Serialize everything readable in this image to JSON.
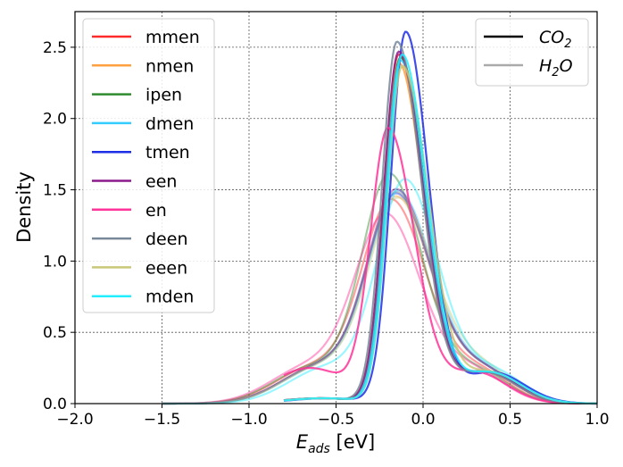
{
  "chart_data": {
    "type": "line",
    "title": "",
    "xlabel_main": "E",
    "xlabel_sub": "ads",
    "xlabel_unit": " [eV]",
    "ylabel": "Density",
    "xlim": [
      -2.0,
      1.0
    ],
    "ylim": [
      0.0,
      2.75
    ],
    "xticks": [
      -2.0,
      -1.5,
      -1.0,
      -0.5,
      0.0,
      0.5,
      1.0
    ],
    "xtick_labels": [
      "−2.0",
      "−1.5",
      "−1.0",
      "−0.5",
      "0.0",
      "0.5",
      "1.0"
    ],
    "yticks": [
      0.0,
      0.5,
      1.0,
      1.5,
      2.0,
      2.5
    ],
    "ytick_labels": [
      "0.0",
      "0.5",
      "1.0",
      "1.5",
      "2.0",
      "2.5"
    ],
    "grid": true,
    "legend_amines_position": "upper-left",
    "legend_adsorbates_position": "upper-right",
    "adsorbates": [
      {
        "name": "CO2",
        "label_main": "CO",
        "label_sub": "2",
        "color": "#000000"
      },
      {
        "name": "H2O",
        "label_main": "H",
        "label_sub": "2",
        "label_tail": "O",
        "color": "#aaaaaa"
      }
    ],
    "series": [
      {
        "name": "mmen",
        "color": "#ff2a2a",
        "co2": {
          "peak_x": -0.14,
          "peak_y": 2.44,
          "sl": 0.085,
          "sr": 0.14
        },
        "h2o": {
          "peak_x": -0.18,
          "peak_y": 1.4,
          "sl": 0.17,
          "sr": 0.2
        }
      },
      {
        "name": "nmen",
        "color": "#ffa040",
        "co2": {
          "peak_x": -0.14,
          "peak_y": 2.38,
          "sl": 0.085,
          "sr": 0.14
        },
        "h2o": {
          "peak_x": -0.15,
          "peak_y": 1.42,
          "sl": 0.17,
          "sr": 0.2
        }
      },
      {
        "name": "ipen",
        "color": "#2e8b2e",
        "co2": {
          "peak_x": -0.13,
          "peak_y": 2.42,
          "sl": 0.085,
          "sr": 0.14
        },
        "h2o": {
          "peak_x": -0.19,
          "peak_y": 1.58,
          "sl": 0.16,
          "sr": 0.19
        }
      },
      {
        "name": "dmen",
        "color": "#33ccff",
        "co2": {
          "peak_x": -0.13,
          "peak_y": 2.4,
          "sl": 0.085,
          "sr": 0.14
        },
        "h2o": {
          "peak_x": -0.14,
          "peak_y": 1.46,
          "sl": 0.17,
          "sr": 0.2
        }
      },
      {
        "name": "tmen",
        "color": "#1e2ee6",
        "co2": {
          "peak_x": -0.1,
          "peak_y": 2.6,
          "sl": 0.085,
          "sr": 0.13
        },
        "h2o": {
          "peak_x": -0.15,
          "peak_y": 1.44,
          "sl": 0.17,
          "sr": 0.2
        }
      },
      {
        "name": "een",
        "color": "#8b1a8b",
        "co2": {
          "peak_x": -0.14,
          "peak_y": 2.46,
          "sl": 0.085,
          "sr": 0.14
        },
        "h2o": {
          "peak_x": -0.15,
          "peak_y": 1.47,
          "sl": 0.17,
          "sr": 0.2
        }
      },
      {
        "name": "en",
        "color": "#ff3399",
        "co2": {
          "peak_x": -0.2,
          "peak_y": 1.9,
          "sl": 0.1,
          "sr": 0.15
        },
        "h2o": {
          "peak_x": -0.21,
          "peak_y": 1.3,
          "sl": 0.18,
          "sr": 0.2
        }
      },
      {
        "name": "deen",
        "color": "#778899",
        "co2": {
          "peak_x": -0.15,
          "peak_y": 2.53,
          "sl": 0.085,
          "sr": 0.14
        },
        "h2o": {
          "peak_x": -0.15,
          "peak_y": 1.45,
          "sl": 0.17,
          "sr": 0.2
        }
      },
      {
        "name": "eeen",
        "color": "#c8c878",
        "co2": {
          "peak_x": -0.12,
          "peak_y": 2.36,
          "sl": 0.085,
          "sr": 0.15
        },
        "h2o": {
          "peak_x": -0.14,
          "peak_y": 1.41,
          "sl": 0.17,
          "sr": 0.21
        }
      },
      {
        "name": "mden",
        "color": "#22eeff",
        "co2": {
          "peak_x": -0.12,
          "peak_y": 2.44,
          "sl": 0.085,
          "sr": 0.14
        },
        "h2o": {
          "peak_x": -0.1,
          "peak_y": 1.54,
          "sl": 0.16,
          "sr": 0.19
        }
      }
    ]
  }
}
